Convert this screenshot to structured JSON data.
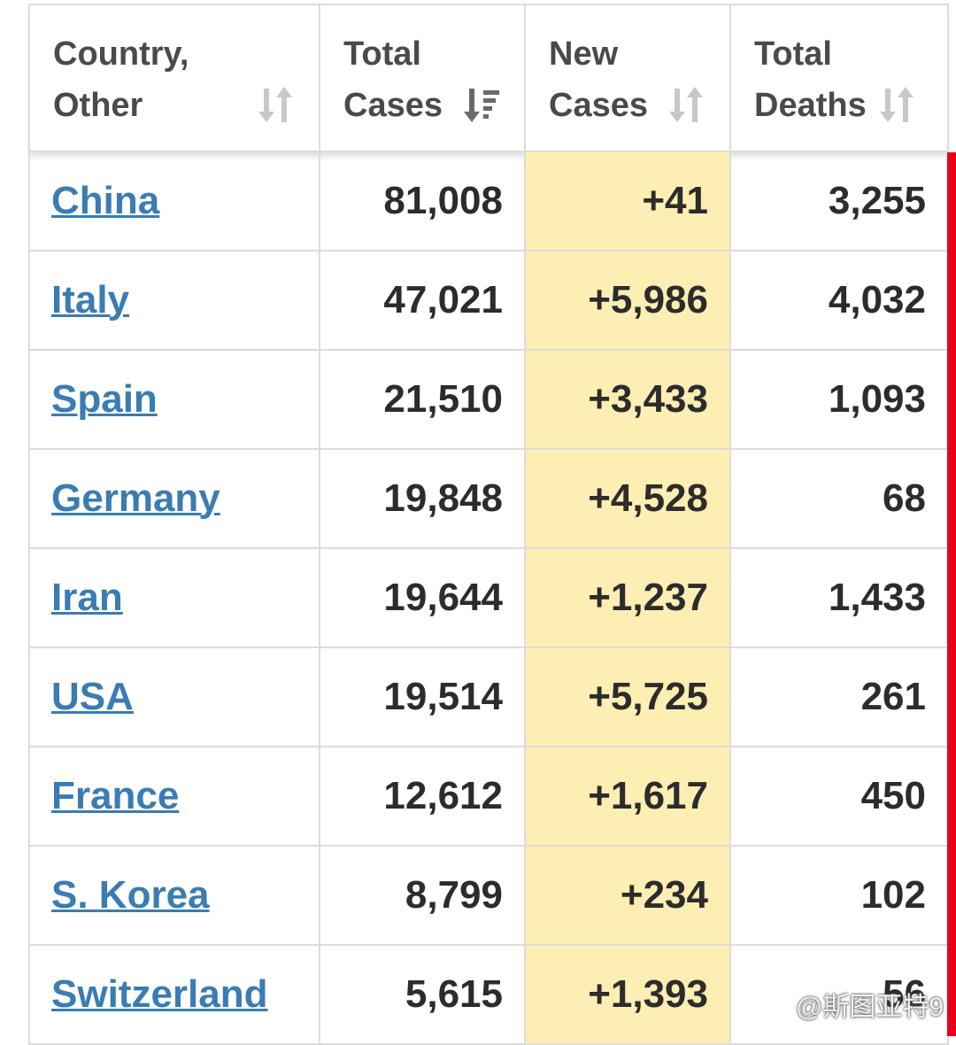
{
  "table": {
    "headers": [
      {
        "line1": "Country,",
        "line2": "Other",
        "sort": "unsorted"
      },
      {
        "line1": "Total",
        "line2": "Cases",
        "sort": "descending"
      },
      {
        "line1": "New",
        "line2": "Cases",
        "sort": "unsorted"
      },
      {
        "line1": "Total",
        "line2": "Deaths",
        "sort": "unsorted"
      }
    ],
    "rows": [
      {
        "country": "China",
        "total_cases": "81,008",
        "new_cases": "+41",
        "total_deaths": "3,255"
      },
      {
        "country": "Italy",
        "total_cases": "47,021",
        "new_cases": "+5,986",
        "total_deaths": "4,032"
      },
      {
        "country": "Spain",
        "total_cases": "21,510",
        "new_cases": "+3,433",
        "total_deaths": "1,093"
      },
      {
        "country": "Germany",
        "total_cases": "19,848",
        "new_cases": "+4,528",
        "total_deaths": "68"
      },
      {
        "country": "Iran",
        "total_cases": "19,644",
        "new_cases": "+1,237",
        "total_deaths": "1,433"
      },
      {
        "country": "USA",
        "total_cases": "19,514",
        "new_cases": "+5,725",
        "total_deaths": "261"
      },
      {
        "country": "France",
        "total_cases": "12,612",
        "new_cases": "+1,617",
        "total_deaths": "450"
      },
      {
        "country": "S. Korea",
        "total_cases": "8,799",
        "new_cases": "+234",
        "total_deaths": "102"
      },
      {
        "country": "Switzerland",
        "total_cases": "5,615",
        "new_cases": "+1,393",
        "total_deaths": "56"
      }
    ]
  },
  "colors": {
    "link": "#3a7cb3",
    "new_cases_highlight": "#fdeeb3",
    "side_bar": "#e8001c",
    "header_text": "#4a4a4a"
  },
  "watermark": {
    "text": "@斯图亚特9",
    "icon": "weibo-icon"
  }
}
